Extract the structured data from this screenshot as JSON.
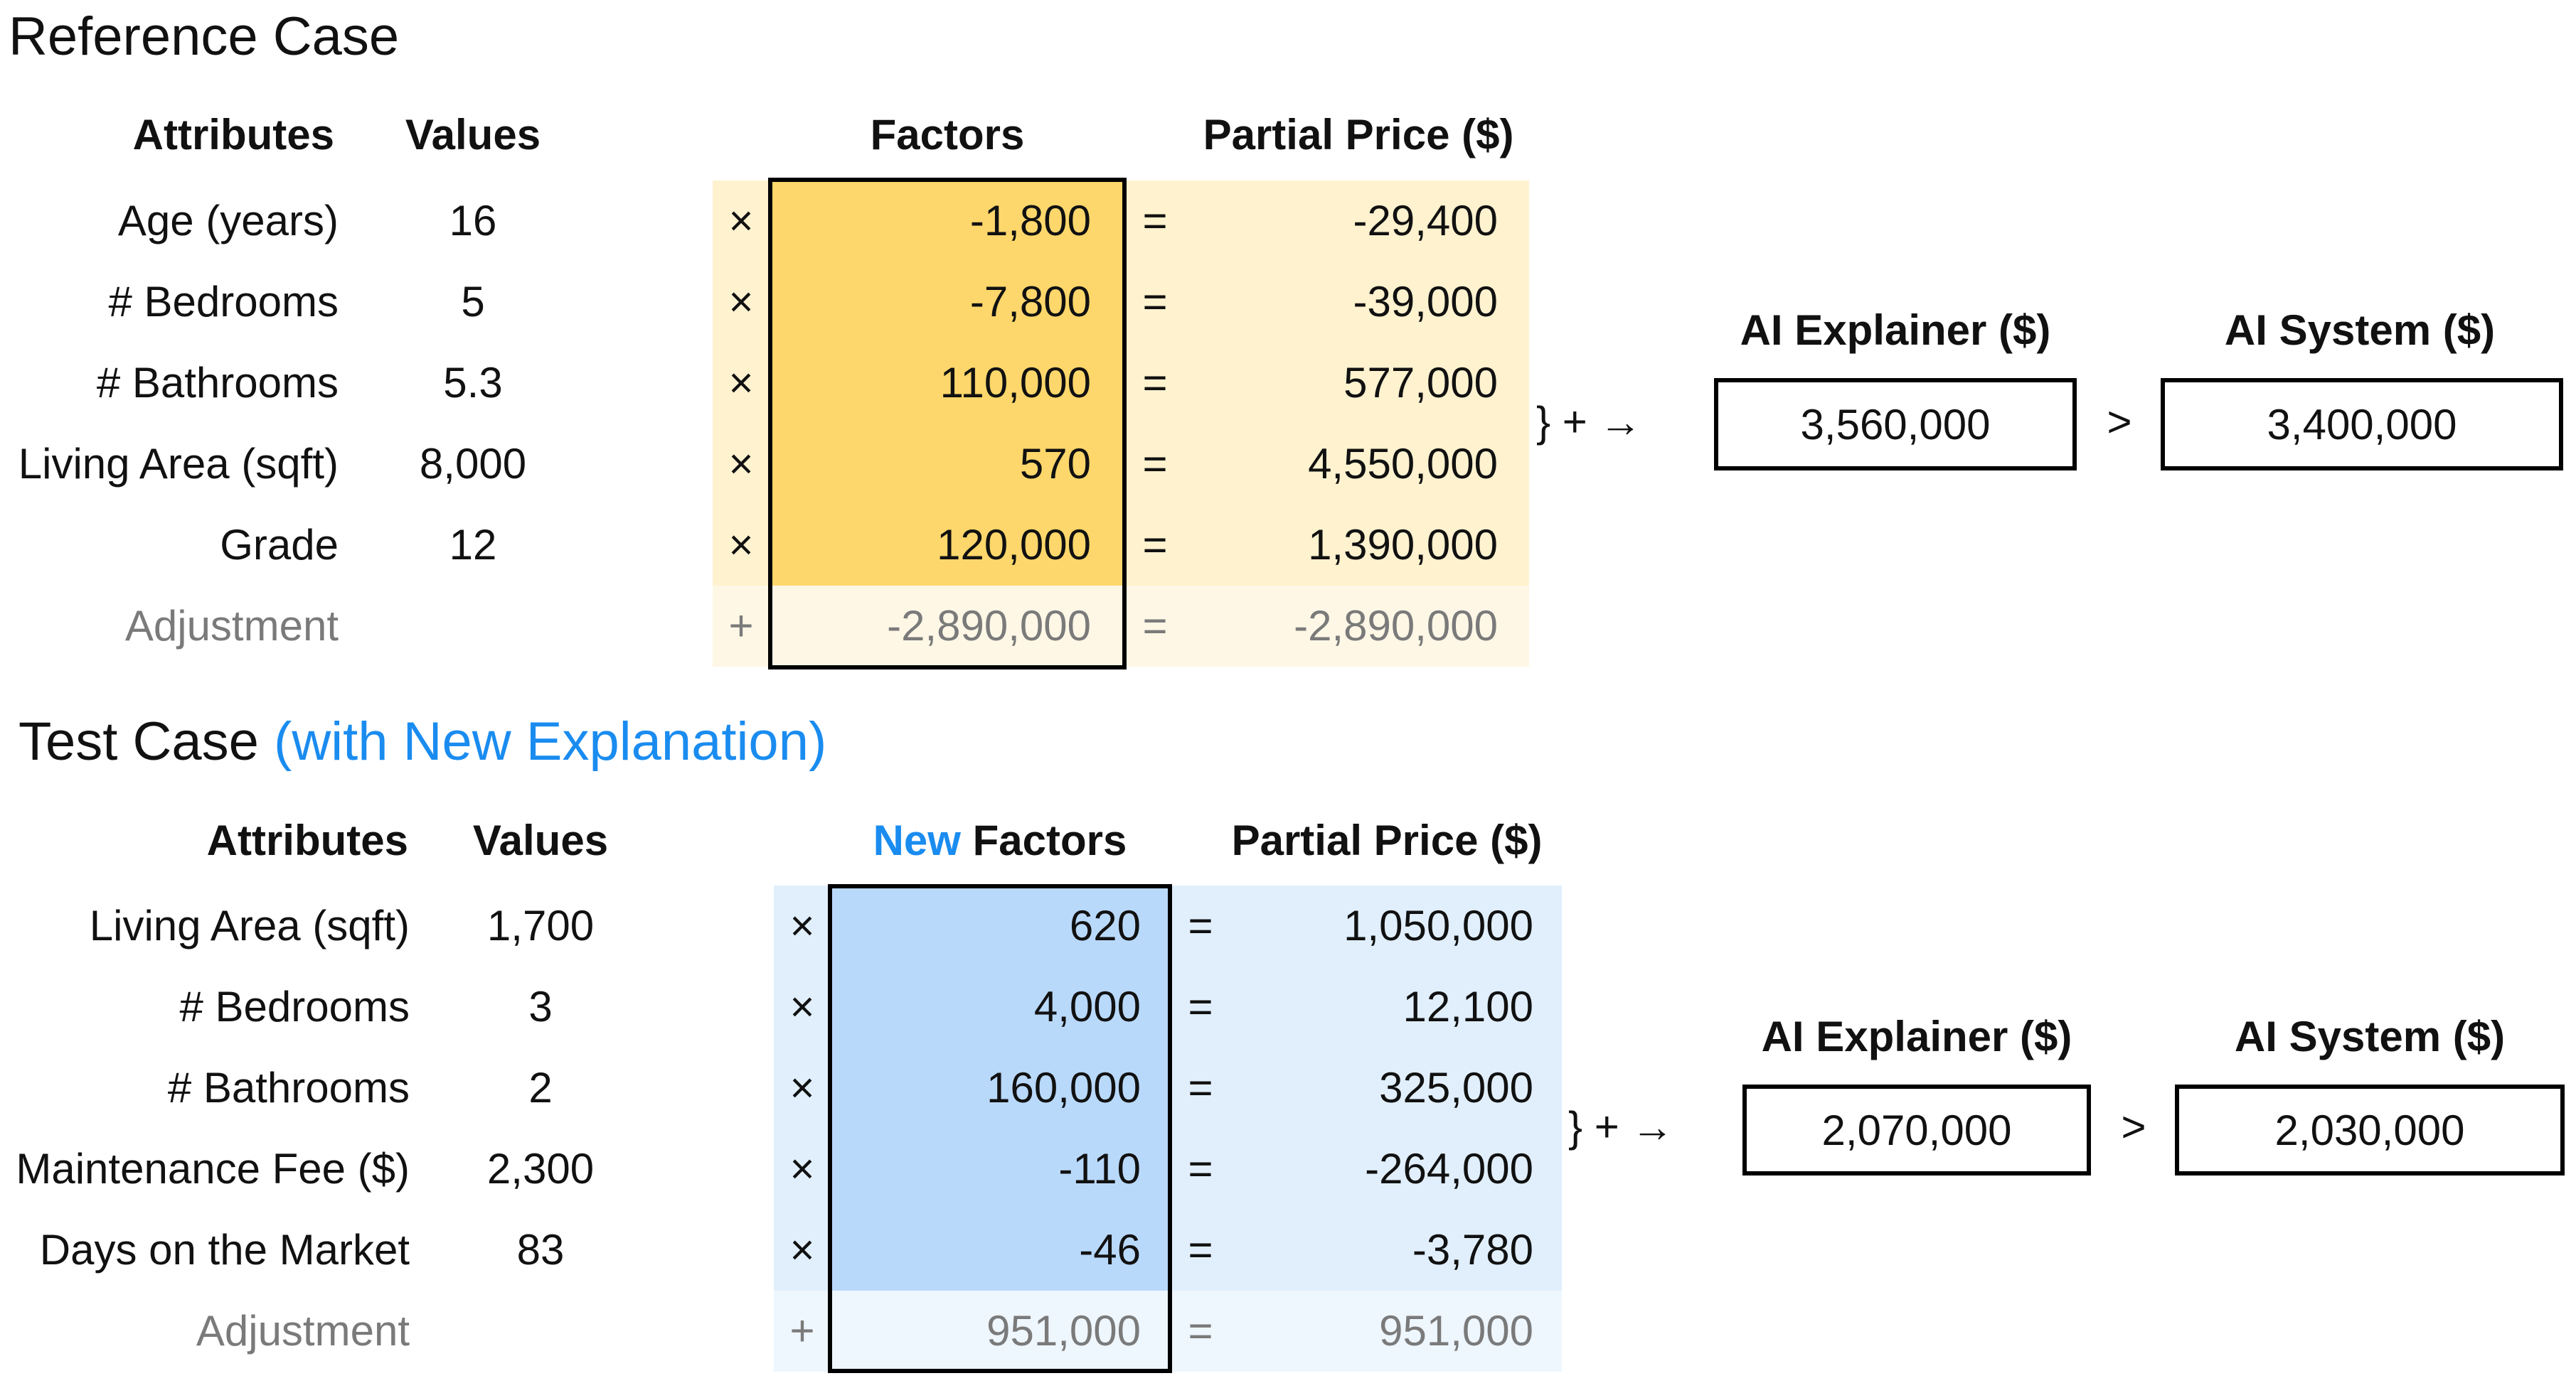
{
  "colors": {
    "ref_factor_fill": "#fdd76b",
    "ref_partial_fill": "#fef2cf",
    "ref_adjust_fill": "#fef7e6",
    "test_factor_fill": "#b9d9fb",
    "test_partial_fill": "#e1effd",
    "test_adjust_fill": "#eef6fe",
    "accent_blue": "#1a8cf0",
    "muted_gray": "#7a7a7a"
  },
  "reference": {
    "title": "Reference Case",
    "headers": {
      "attributes": "Attributes",
      "values": "Values",
      "factors": "Factors",
      "partial": "Partial Price ($)"
    },
    "rows": [
      {
        "attribute": "Age (years)",
        "value": "16",
        "op": "×",
        "factor": "-1,800",
        "eq": "=",
        "partial": "-29,400"
      },
      {
        "attribute": "# Bedrooms",
        "value": "5",
        "op": "×",
        "factor": "-7,800",
        "eq": "=",
        "partial": "-39,000"
      },
      {
        "attribute": "# Bathrooms",
        "value": "5.3",
        "op": "×",
        "factor": "110,000",
        "eq": "=",
        "partial": "577,000"
      },
      {
        "attribute": "Living Area (sqft)",
        "value": "8,000",
        "op": "×",
        "factor": "570",
        "eq": "=",
        "partial": "4,550,000"
      },
      {
        "attribute": "Grade",
        "value": "12",
        "op": "×",
        "factor": "120,000",
        "eq": "=",
        "partial": "1,390,000"
      }
    ],
    "adjustment": {
      "attribute": "Adjustment",
      "op": "+",
      "factor": "-2,890,000",
      "eq": "=",
      "partial": "-2,890,000"
    },
    "sum_symbol": "} + →",
    "explainer_label": "AI Explainer ($)",
    "explainer_value": "3,560,000",
    "comparison": ">",
    "system_label": "AI System ($)",
    "system_value": "3,400,000"
  },
  "test": {
    "title": "Test Case",
    "subtitle": "(with New Explanation)",
    "headers": {
      "attributes": "Attributes",
      "values": "Values",
      "factors_prefix": "New",
      "factors": "Factors",
      "partial": "Partial Price ($)"
    },
    "rows": [
      {
        "attribute": "Living Area (sqft)",
        "value": "1,700",
        "op": "×",
        "factor": "620",
        "eq": "=",
        "partial": "1,050,000"
      },
      {
        "attribute": "# Bedrooms",
        "value": "3",
        "op": "×",
        "factor": "4,000",
        "eq": "=",
        "partial": "12,100"
      },
      {
        "attribute": "# Bathrooms",
        "value": "2",
        "op": "×",
        "factor": "160,000",
        "eq": "=",
        "partial": "325,000"
      },
      {
        "attribute": "Maintenance Fee ($)",
        "value": "2,300",
        "op": "×",
        "factor": "-110",
        "eq": "=",
        "partial": "-264,000"
      },
      {
        "attribute": "Days on the Market",
        "value": "83",
        "op": "×",
        "factor": "-46",
        "eq": "=",
        "partial": "-3,780"
      }
    ],
    "adjustment": {
      "attribute": "Adjustment",
      "op": "+",
      "factor": "951,000",
      "eq": "=",
      "partial": "951,000"
    },
    "sum_symbol": "} + →",
    "explainer_label": "AI Explainer ($)",
    "explainer_value": "2,070,000",
    "comparison": ">",
    "system_label": "AI System ($)",
    "system_value": "2,030,000"
  }
}
